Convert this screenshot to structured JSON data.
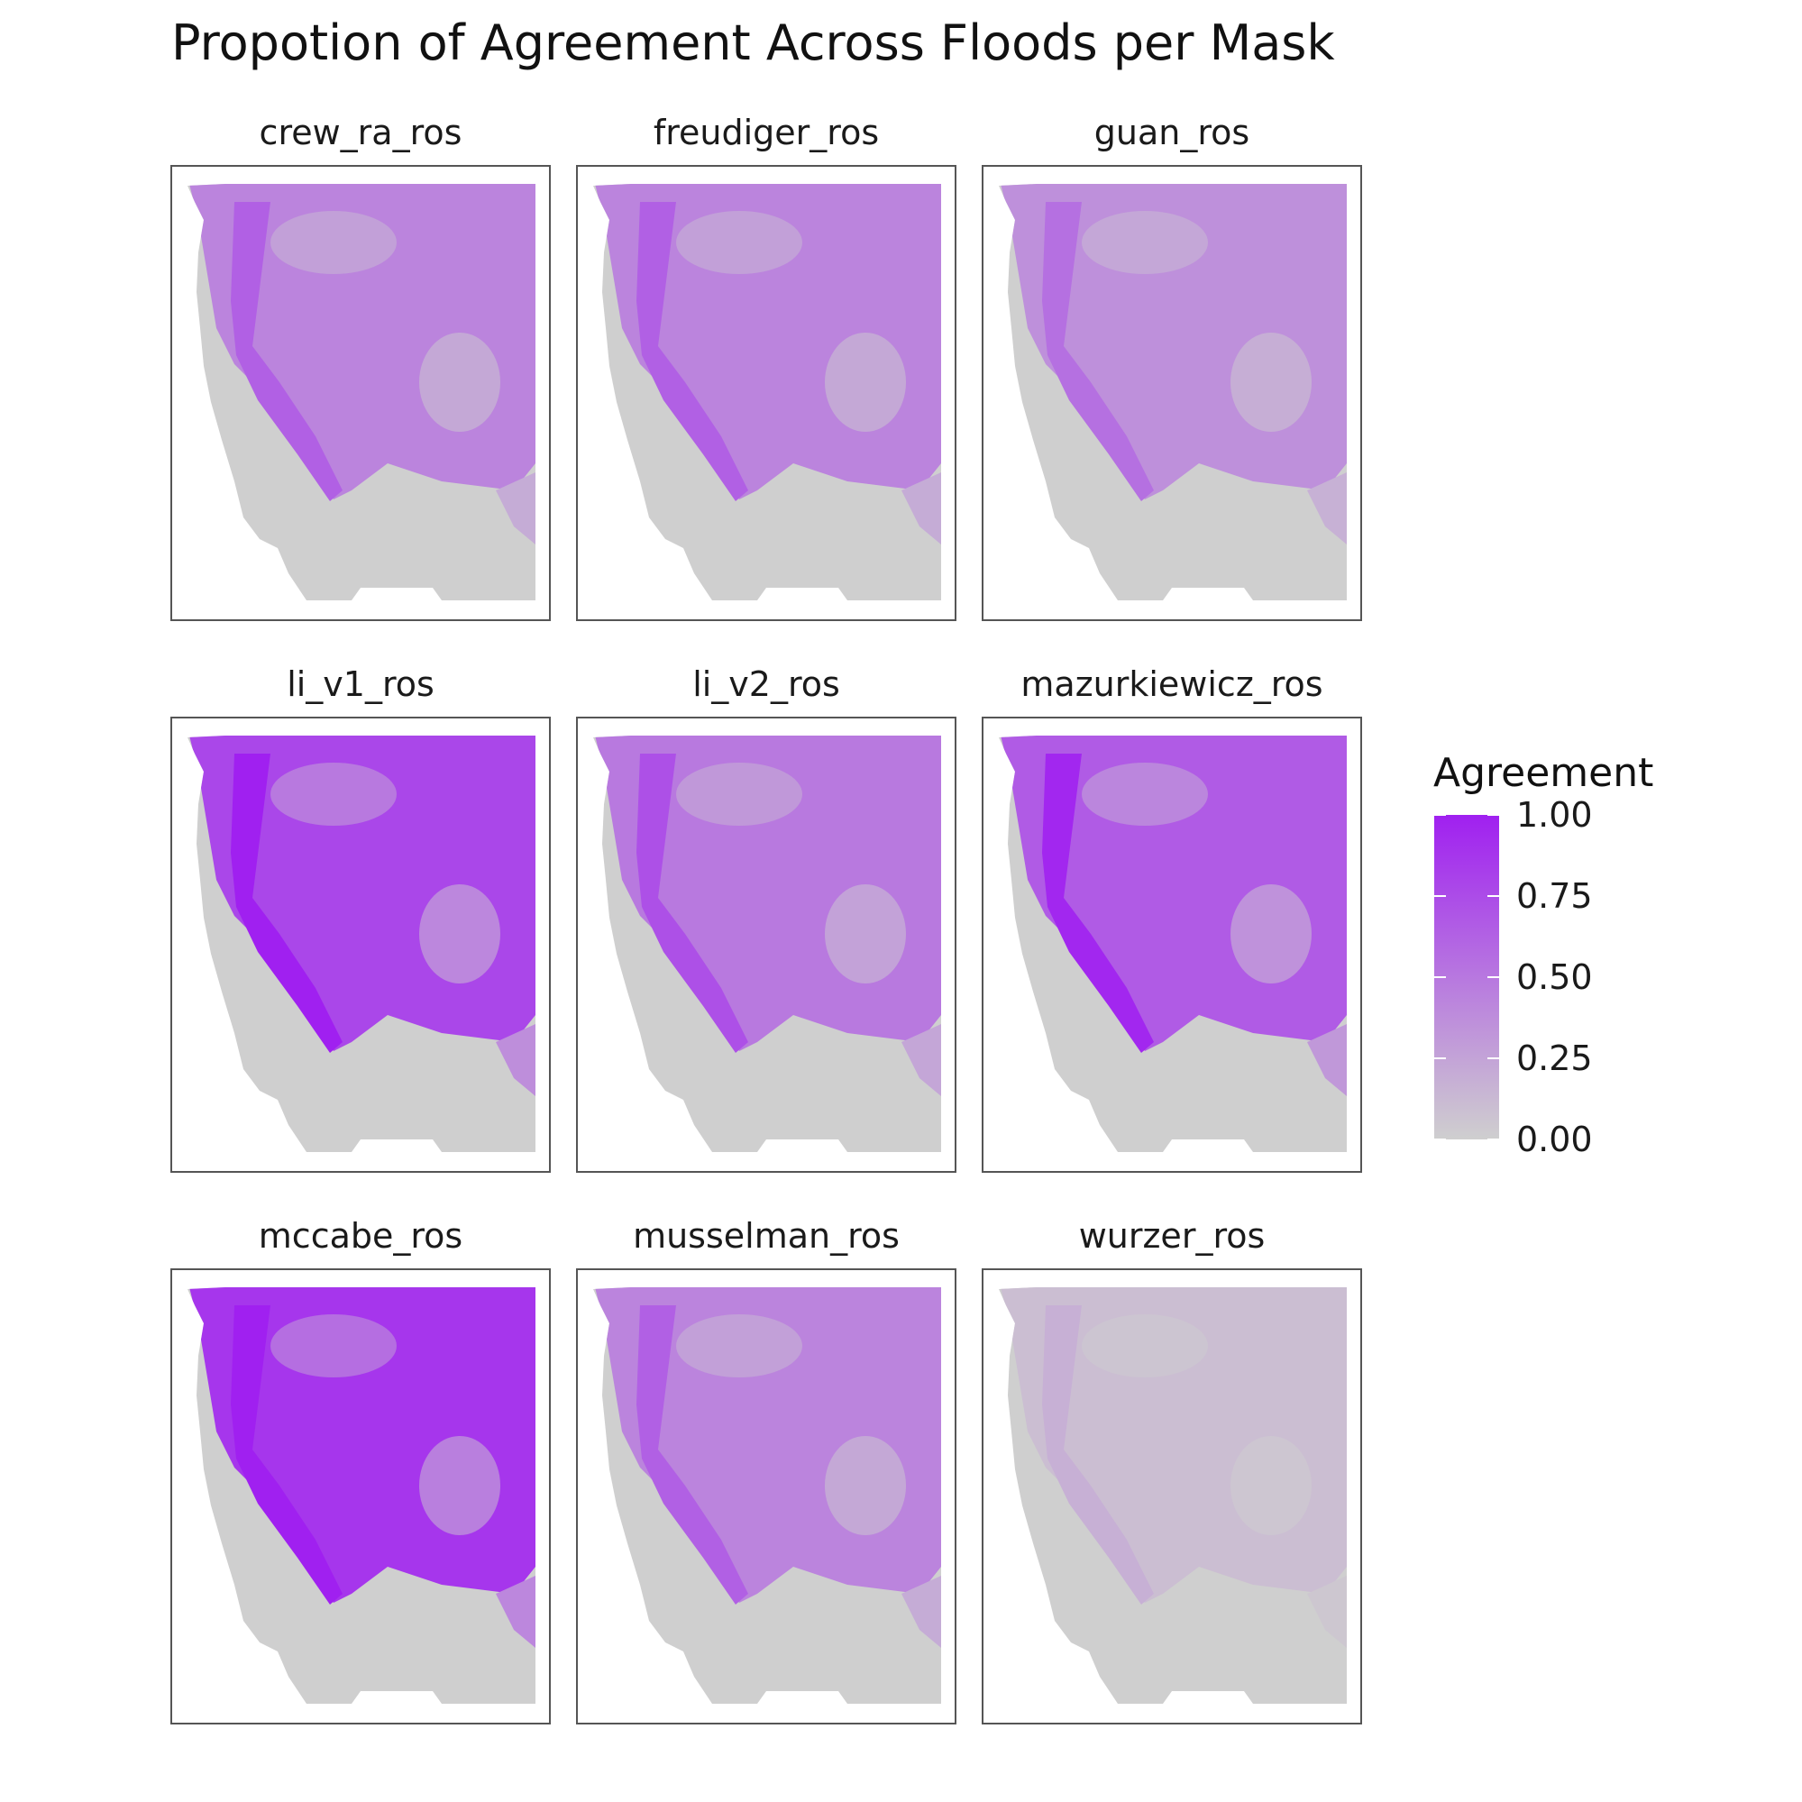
{
  "title": "Propotion of Agreement Across Floods per Mask",
  "colors": {
    "low": "#cfcfcf",
    "high": "#a020f0",
    "panel_border": "#555555",
    "background": "#ffffff"
  },
  "legend": {
    "title": "Agreement",
    "ticks": [
      "1.00",
      "0.75",
      "0.50",
      "0.25",
      "0.00"
    ],
    "tick_values": [
      1.0,
      0.75,
      0.5,
      0.25,
      0.0
    ]
  },
  "chart_data": {
    "type": "heatmap",
    "title": "Propotion of Agreement Across Floods per Mask",
    "value_range": [
      0,
      1
    ],
    "panels": [
      {
        "label": "crew_ra_ros",
        "mean_agreement": 0.45
      },
      {
        "label": "freudiger_ros",
        "mean_agreement": 0.45
      },
      {
        "label": "guan_ros",
        "mean_agreement": 0.38
      },
      {
        "label": "li_v1_ros",
        "mean_agreement": 0.82
      },
      {
        "label": "li_v2_ros",
        "mean_agreement": 0.52
      },
      {
        "label": "mazurkiewicz_ros",
        "mean_agreement": 0.7
      },
      {
        "label": "mccabe_ros",
        "mean_agreement": 0.92
      },
      {
        "label": "musselman_ros",
        "mean_agreement": 0.45
      },
      {
        "label": "wurzer_ros",
        "mean_agreement": 0.1
      }
    ]
  }
}
